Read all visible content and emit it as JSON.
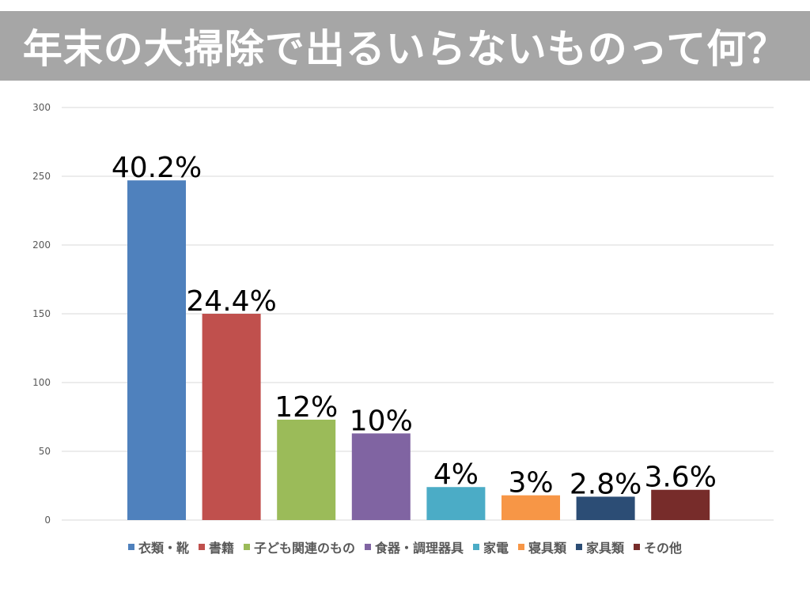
{
  "title": "年末の大掃除で出るいらないものって何？",
  "chart_data": {
    "type": "bar",
    "categories": [
      "衣類・靴",
      "書籍",
      "子ども関連のもの",
      "食器・調理器具",
      "家電",
      "寝具類",
      "家具類",
      "その他"
    ],
    "values": [
      247,
      150,
      73,
      63,
      24,
      18,
      17,
      22
    ],
    "data_labels": [
      "40.2%",
      "24.4%",
      "12%",
      "10%",
      "4%",
      "3%",
      "2.8%",
      "3.6%"
    ],
    "colors": [
      "#4f81bd",
      "#c0504d",
      "#9bbb59",
      "#8064a2",
      "#4bacc6",
      "#f79646",
      "#2c4d75",
      "#772c2a"
    ],
    "ylim": [
      0,
      300
    ],
    "yticks": [
      0,
      50,
      100,
      150,
      200,
      250,
      300
    ],
    "grid": true,
    "legend_position": "bottom",
    "xlabel": "",
    "ylabel": ""
  }
}
